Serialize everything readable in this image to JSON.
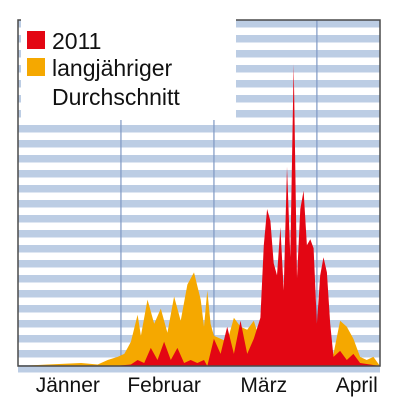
{
  "chart_data": {
    "type": "area",
    "title": "",
    "xlabel": "",
    "ylabel": "",
    "grid": true,
    "legend_position": "top-left",
    "x_axis": {
      "unit": "day",
      "range": [
        1,
        110
      ],
      "month_labels": [
        {
          "label": "Jänner",
          "center_day": 16
        },
        {
          "label": "Februar",
          "center_day": 45
        },
        {
          "label": "März",
          "center_day": 75
        },
        {
          "label": "April",
          "center_day": 103
        }
      ],
      "month_boundaries": [
        32,
        60,
        91
      ]
    },
    "y_axis": {
      "range": [
        0,
        100
      ],
      "tick_labels": []
    },
    "series": [
      {
        "name": "langjähriger Durchschnitt",
        "color": "#f5a800",
        "points": [
          [
            1,
            0
          ],
          [
            10,
            0.5
          ],
          [
            20,
            1
          ],
          [
            25,
            0.5
          ],
          [
            28,
            2
          ],
          [
            31,
            3
          ],
          [
            33,
            4
          ],
          [
            35,
            8
          ],
          [
            37,
            17
          ],
          [
            38,
            10
          ],
          [
            40,
            22
          ],
          [
            42,
            14
          ],
          [
            44,
            19
          ],
          [
            46,
            11
          ],
          [
            48,
            23
          ],
          [
            50,
            15
          ],
          [
            52,
            27
          ],
          [
            54,
            31
          ],
          [
            56,
            22
          ],
          [
            57,
            13
          ],
          [
            58,
            25
          ],
          [
            59,
            14
          ],
          [
            60,
            10
          ],
          [
            62,
            9
          ],
          [
            64,
            8
          ],
          [
            66,
            16
          ],
          [
            68,
            13
          ],
          [
            70,
            12
          ],
          [
            72,
            15
          ],
          [
            74,
            8
          ],
          [
            76,
            11
          ],
          [
            78,
            9
          ],
          [
            80,
            7
          ],
          [
            82,
            6
          ],
          [
            84,
            14
          ],
          [
            86,
            4
          ],
          [
            88,
            11
          ],
          [
            90,
            6
          ],
          [
            92,
            4
          ],
          [
            94,
            2
          ],
          [
            96,
            4
          ],
          [
            98,
            15
          ],
          [
            100,
            13
          ],
          [
            102,
            9
          ],
          [
            104,
            3
          ],
          [
            106,
            2
          ],
          [
            108,
            3
          ],
          [
            110,
            0
          ]
        ]
      },
      {
        "name": "2011",
        "color": "#e30613",
        "points": [
          [
            1,
            0
          ],
          [
            30,
            0
          ],
          [
            35,
            0.5
          ],
          [
            37,
            2
          ],
          [
            39,
            1
          ],
          [
            41,
            6
          ],
          [
            43,
            2
          ],
          [
            45,
            8
          ],
          [
            47,
            2
          ],
          [
            49,
            6
          ],
          [
            51,
            1
          ],
          [
            53,
            2
          ],
          [
            55,
            1
          ],
          [
            57,
            2
          ],
          [
            58,
            0
          ],
          [
            60,
            9
          ],
          [
            62,
            4
          ],
          [
            64,
            13
          ],
          [
            66,
            4
          ],
          [
            68,
            15
          ],
          [
            70,
            4
          ],
          [
            72,
            9
          ],
          [
            74,
            16
          ],
          [
            75,
            40
          ],
          [
            76,
            52
          ],
          [
            77,
            48
          ],
          [
            78,
            34
          ],
          [
            79,
            30
          ],
          [
            80,
            46
          ],
          [
            81,
            25
          ],
          [
            82,
            66
          ],
          [
            83,
            36
          ],
          [
            84,
            100
          ],
          [
            85,
            29
          ],
          [
            86,
            52
          ],
          [
            87,
            58
          ],
          [
            88,
            40
          ],
          [
            89,
            42
          ],
          [
            90,
            39
          ],
          [
            91,
            14
          ],
          [
            92,
            30
          ],
          [
            93,
            36
          ],
          [
            94,
            31
          ],
          [
            95,
            14
          ],
          [
            96,
            3
          ],
          [
            98,
            5
          ],
          [
            100,
            2
          ],
          [
            102,
            4
          ],
          [
            104,
            1
          ],
          [
            110,
            0
          ]
        ]
      }
    ],
    "legend": [
      {
        "label": "2011",
        "color": "#e30613"
      },
      {
        "label": "langjähriger Durchschnitt",
        "color": "#f5a800"
      }
    ]
  },
  "colors": {
    "plot_background": "#ffffff",
    "stripe": "#bccde4",
    "stripe_dark": "#95acd0",
    "separator": "#7f98c3",
    "border": "#4a4a4a"
  }
}
